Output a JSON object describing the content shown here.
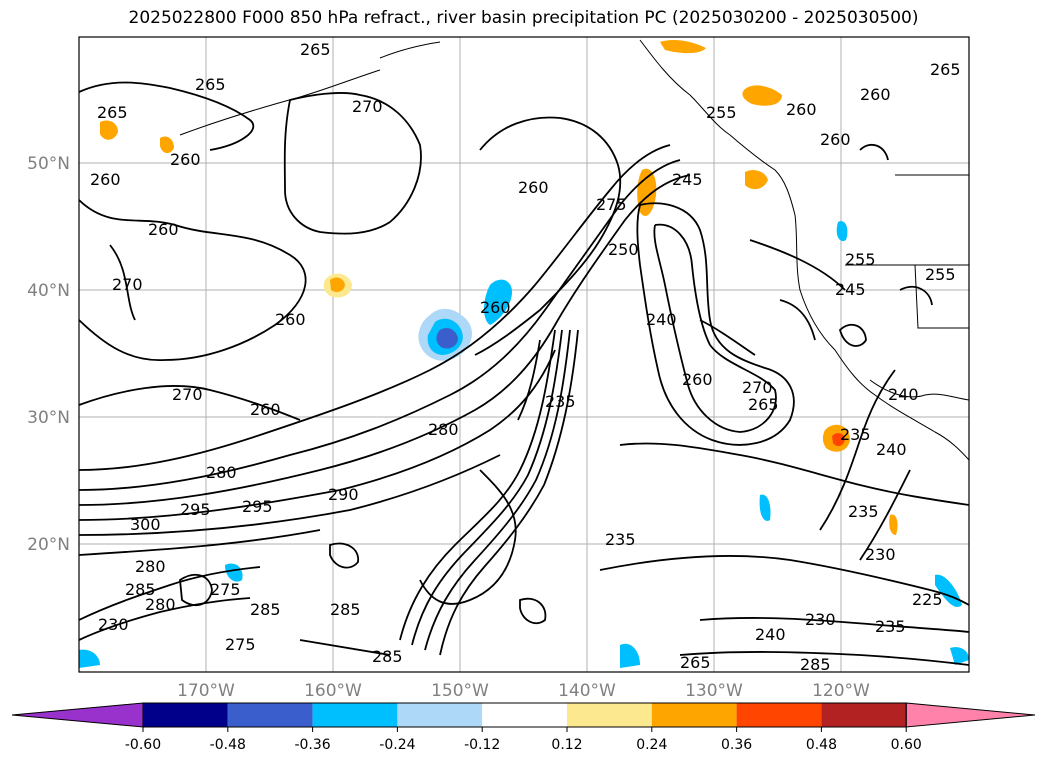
{
  "title": "2025022800 F000 850 hPa refract., river basin precipitation PC (2025030200 - 2025030500)",
  "lat_labels": [
    "50°N",
    "40°N",
    "30°N",
    "20°N"
  ],
  "lon_labels": [
    "170°W",
    "160°W",
    "150°W",
    "140°W",
    "130°W",
    "120°W"
  ],
  "contour_labels": [
    "265",
    "265",
    "265",
    "270",
    "260",
    "260",
    "260",
    "270",
    "260",
    "270",
    "260",
    "260",
    "265",
    "260",
    "260",
    "255",
    "245",
    "250",
    "275",
    "260",
    "240",
    "255",
    "255",
    "245",
    "260",
    "270",
    "265",
    "260",
    "240",
    "240",
    "235",
    "235",
    "235",
    "235",
    "230",
    "225",
    "235",
    "240",
    "230",
    "285",
    "285",
    "290",
    "295",
    "295",
    "300",
    "280",
    "280",
    "285",
    "280",
    "275",
    "285",
    "275",
    "285",
    "265",
    "280",
    "230"
  ],
  "colorbar": {
    "colors": [
      "#9932cc",
      "#00008b",
      "#3a5fcd",
      "#00bfff",
      "#add8f7",
      "#ffffff",
      "#fce98f",
      "#ffa500",
      "#ff4500",
      "#b22222",
      "#ff82ab"
    ],
    "ticks": [
      "-0.60",
      "-0.48",
      "-0.36",
      "-0.24",
      "-0.12",
      "0.12",
      "0.24",
      "0.36",
      "0.48",
      "0.60"
    ]
  }
}
